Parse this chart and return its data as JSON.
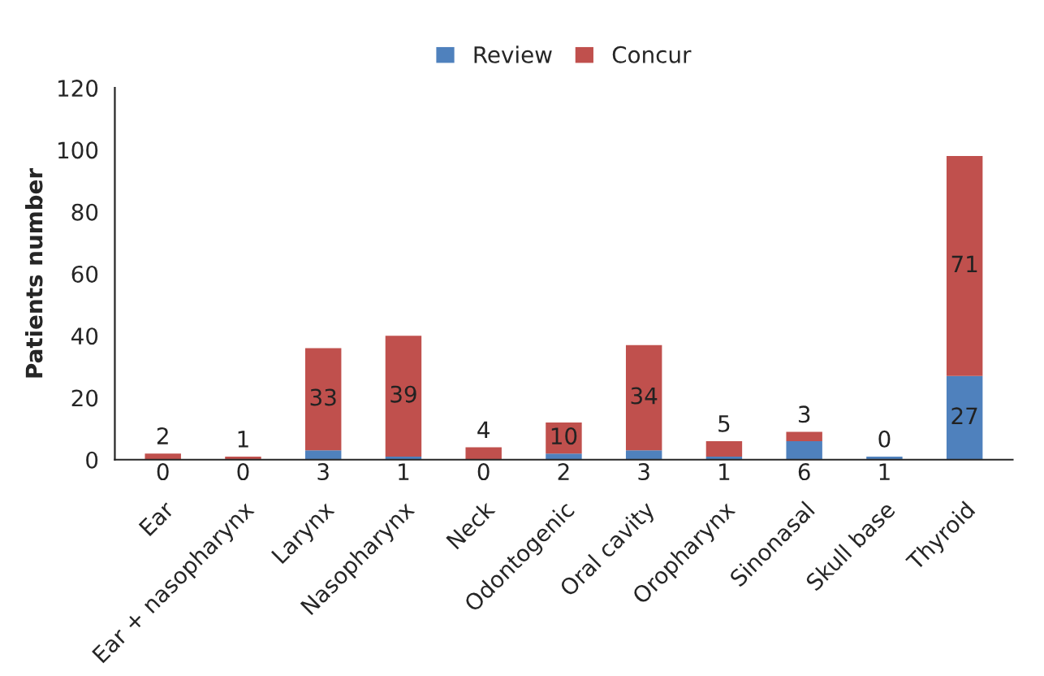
{
  "chart_data": {
    "type": "bar",
    "stacked": true,
    "ylabel": "Patients number",
    "categories": [
      "Ear",
      "Ear + nasopharynx",
      "Larynx",
      "Nasopharynx",
      "Neck",
      "Odontogenic",
      "Oral cavity",
      "Oropharynx",
      "Sinonasal",
      "Skull base",
      "Thyroid"
    ],
    "series": [
      {
        "name": "Review",
        "color": "#4f81bd",
        "values": [
          0,
          0,
          3,
          1,
          0,
          2,
          3,
          1,
          6,
          1,
          27
        ]
      },
      {
        "name": "Concur",
        "color": "#c0504d",
        "values": [
          2,
          1,
          33,
          39,
          4,
          10,
          34,
          5,
          3,
          0,
          71
        ]
      }
    ],
    "ylim": [
      0,
      120
    ],
    "yticks": [
      0,
      20,
      40,
      60,
      80,
      100,
      120
    ],
    "data_labels": true,
    "legend": "top",
    "grid": false
  }
}
